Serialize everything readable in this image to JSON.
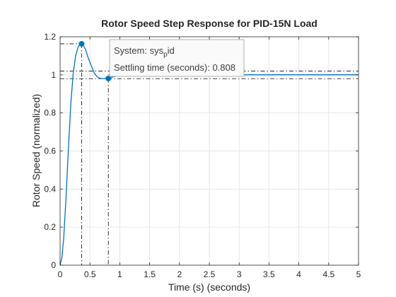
{
  "chart_data": {
    "type": "line",
    "title": "Rotor Speed Step Response for PID-15N Load",
    "xlabel": "Time (s) (seconds)",
    "ylabel": "Rotor Speed (normalized)",
    "xlim": [
      0,
      5
    ],
    "ylim": [
      0,
      1.2
    ],
    "x_ticks": [
      0,
      0.5,
      1,
      1.5,
      2,
      2.5,
      3,
      3.5,
      4,
      4.5,
      5
    ],
    "x_tick_labels": [
      "0",
      "0.5",
      "1",
      "1.5",
      "2",
      "2.5",
      "3",
      "3.5",
      "4",
      "4.5",
      "5"
    ],
    "y_ticks": [
      0,
      0.2,
      0.4,
      0.6,
      0.8,
      1,
      1.2
    ],
    "y_tick_labels": [
      "0",
      "0.2",
      "0.4",
      "0.6",
      "0.8",
      "1",
      "1.2"
    ],
    "grid": true,
    "series": [
      {
        "color": "#0072bd",
        "x": [
          0,
          0.03,
          0.06,
          0.1,
          0.14,
          0.18,
          0.22,
          0.26,
          0.3,
          0.33,
          0.36,
          0.39,
          0.43,
          0.47,
          0.52,
          0.57,
          0.62,
          0.67,
          0.72,
          0.77,
          0.81,
          0.9,
          1.0,
          1.2,
          1.5,
          2.0,
          2.5,
          3.0,
          3.5,
          4.0,
          4.5,
          5.0
        ],
        "y": [
          0,
          0.04,
          0.14,
          0.36,
          0.62,
          0.85,
          1.01,
          1.1,
          1.145,
          1.16,
          1.163,
          1.155,
          1.13,
          1.09,
          1.05,
          1.01,
          0.99,
          0.982,
          0.98,
          0.981,
          0.983,
          0.99,
          0.996,
          1.0,
          1.001,
          1.0,
          1.0,
          1.0,
          1.0,
          1.0,
          1.0,
          1.0
        ]
      }
    ],
    "markers": [
      {
        "name": "peak",
        "x": 0.36,
        "y": 1.163
      },
      {
        "name": "settling",
        "x": 0.808,
        "y": 0.981
      }
    ],
    "reference_lines": {
      "settling_band_upper": 1.02,
      "settling_band_lower": 0.98,
      "final_value": 1.0,
      "peak_value": 1.163
    },
    "tooltip": {
      "line1_prefix": "System: sys",
      "line1_sub": "p",
      "line1_suffix": "id",
      "line2": "Settling time (seconds): 0.808"
    },
    "colors": {
      "line": "#0072bd",
      "marker": "#0072bd",
      "axes": "#262626",
      "grid": "#e6e6e6",
      "guide": "#000000"
    }
  }
}
